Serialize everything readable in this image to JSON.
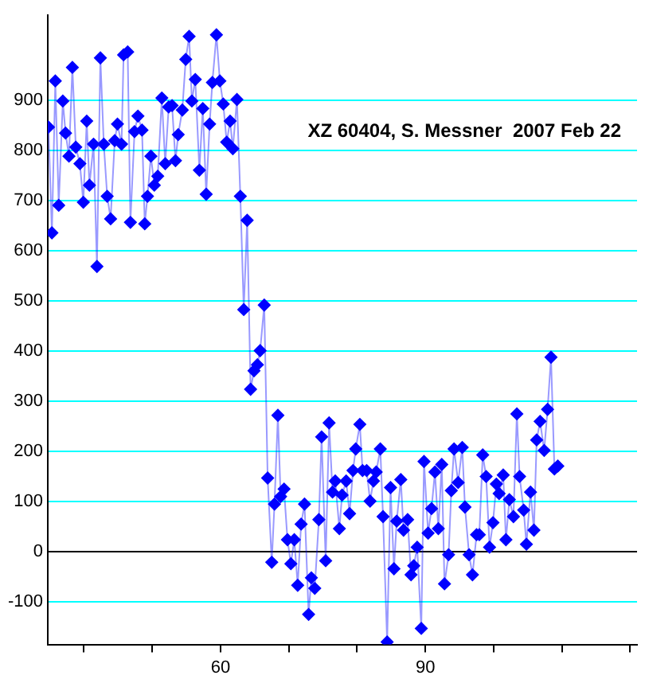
{
  "chart_data": {
    "type": "line",
    "annotations": [
      "XZ 60404, S. Messner  2007 Feb 22"
    ],
    "xlim": [
      34.7,
      121
    ],
    "xticks": [
      {
        "value": 40,
        "label": null
      },
      {
        "value": 50,
        "label": null
      },
      60,
      {
        "value": 70,
        "label": null
      },
      {
        "value": 80,
        "label": null
      },
      90,
      {
        "value": 100,
        "label": null
      },
      {
        "value": 110,
        "label": null
      },
      {
        "value": 120,
        "label": null
      }
    ],
    "ylim": [
      -185,
      1070
    ],
    "yticks": [
      -100,
      0,
      100,
      200,
      300,
      400,
      500,
      600,
      700,
      800,
      900
    ],
    "grid": "y",
    "marker": "diamond",
    "line_style": "solid",
    "legend": false,
    "ref_lines": [
      {
        "axis": "y",
        "value": 0,
        "color": "#000000"
      }
    ],
    "series": [
      {
        "color": "#0000ff",
        "x": [
          34.8,
          35.3,
          35.8,
          36.3,
          36.9,
          37.3,
          37.8,
          38.3,
          38.8,
          39.4,
          39.9,
          40.4,
          40.8,
          41.4,
          41.9,
          42.4,
          42.9,
          43.4,
          43.9,
          44.5,
          44.9,
          45.5,
          45.8,
          46.4,
          46.8,
          47.4,
          47.9,
          48.5,
          48.9,
          49.3,
          49.8,
          50.3,
          50.8,
          51.4,
          51.9,
          52.4,
          52.9,
          53.4,
          53.8,
          54.4,
          54.9,
          55.4,
          55.8,
          56.3,
          56.9,
          57.4,
          57.9,
          58.4,
          58.8,
          59.4,
          59.9,
          60.4,
          60.9,
          61.4,
          61.8,
          62.4,
          62.9,
          63.4,
          63.9,
          64.4,
          64.9,
          65.4,
          65.8,
          66.4,
          66.9,
          67.5,
          67.9,
          68.4,
          68.8,
          69.3,
          69.8,
          70.3,
          70.8,
          71.3,
          71.8,
          72.3,
          72.9,
          73.3,
          73.8,
          74.4,
          74.8,
          75.4,
          75.9,
          76.4,
          76.8,
          77.4,
          77.8,
          78.4,
          78.9,
          79.4,
          79.8,
          80.4,
          80.8,
          81.4,
          81.9,
          82.4,
          82.8,
          83.4,
          83.8,
          84.4,
          84.9,
          85.4,
          85.8,
          86.4,
          86.8,
          87.4,
          87.9,
          88.3,
          88.8,
          89.4,
          89.8,
          90.4,
          90.9,
          91.4,
          91.9,
          92.4,
          92.8,
          93.4,
          93.8,
          94.2,
          94.8,
          95.4,
          95.8,
          96.4,
          96.9,
          97.5,
          97.9,
          98.4,
          98.9,
          99.4,
          99.9,
          100.4,
          100.8,
          101.4,
          101.8,
          102.3,
          102.9,
          103.4,
          103.8,
          104.4,
          104.8,
          105.4,
          105.9,
          106.3,
          106.8,
          107.4,
          107.9,
          108.4,
          108.9,
          109.4
        ],
        "values": [
          847,
          636,
          939,
          691,
          899,
          835,
          789,
          966,
          807,
          774,
          697,
          859,
          731,
          813,
          569,
          985,
          813,
          709,
          664,
          820,
          853,
          813,
          991,
          997,
          657,
          838,
          869,
          841,
          654,
          709,
          789,
          731,
          749,
          905,
          774,
          887,
          890,
          780,
          832,
          881,
          982,
          1028,
          899,
          942,
          761,
          884,
          713,
          853,
          936,
          1031,
          939,
          893,
          817,
          859,
          804,
          902,
          709,
          483,
          661,
          324,
          361,
          373,
          401,
          492,
          147,
          -21,
          95,
          272,
          110,
          125,
          24,
          -24,
          24,
          -67,
          55,
          95,
          -125,
          -52,
          -73,
          64,
          229,
          -18,
          257,
          119,
          141,
          46,
          113,
          141,
          76,
          162,
          205,
          254,
          162,
          162,
          101,
          141,
          159,
          205,
          70,
          -180,
          128,
          -34,
          61,
          144,
          43,
          64,
          -46,
          -28,
          9,
          -153,
          180,
          37,
          86,
          159,
          46,
          174,
          -64,
          -6,
          122,
          205,
          138,
          208,
          89,
          -6,
          -46,
          34,
          34,
          193,
          150,
          9,
          58,
          135,
          116,
          153,
          24,
          104,
          70,
          275,
          150,
          83,
          15,
          119,
          43,
          223,
          260,
          202,
          284,
          388,
          165,
          171
        ]
      }
    ]
  }
}
